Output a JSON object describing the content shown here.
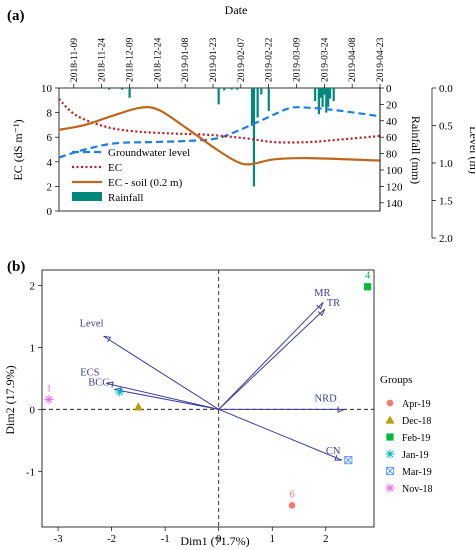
{
  "chart_data": [
    {
      "panel": "(a)",
      "type": "line",
      "title": "Date",
      "x_ticks": [
        "2018-11-09",
        "2018-11-24",
        "2018-12-09",
        "2018-12-24",
        "2019-01-08",
        "2019-01-23",
        "2019-02-07",
        "2019-02-22",
        "2019-03-09",
        "2019-03-24",
        "2019-04-08",
        "2019-04-23"
      ],
      "x_range": [
        "2018-11-01",
        "2019-04-23"
      ],
      "ylabel_left": "EC (dS m⁻¹)",
      "ylim_left": [
        0,
        10
      ],
      "yticks_left": [
        "0",
        "2",
        "4",
        "6",
        "8",
        "10"
      ],
      "ylabel_rain": "Rainfall (mm)",
      "rain_ticks": [
        "0",
        "20",
        "40",
        "60",
        "80",
        "100",
        "120",
        "140"
      ],
      "rain_range": [
        0,
        150
      ],
      "ylabel_level": "Level (m)",
      "level_ticks": [
        "0.0",
        "0.5",
        "1.0",
        "1.5",
        "2.0"
      ],
      "level_range": [
        0,
        2
      ],
      "legend": [
        "Groundwater level",
        "EC",
        "EC - soil (0.2 m)",
        "Rainfall"
      ],
      "series": [
        {
          "name": "Groundwater level",
          "style": "dashed",
          "color": "#1e7fe0",
          "axis": "level",
          "x": [
            "2018-11-01",
            "2018-11-15",
            "2018-12-01",
            "2018-12-20",
            "2019-01-10",
            "2019-01-25",
            "2019-02-05",
            "2019-02-20",
            "2019-03-05",
            "2019-03-15",
            "2019-03-30",
            "2019-04-23"
          ],
          "y": [
            1.13,
            1.0,
            0.9,
            0.88,
            0.86,
            0.82,
            0.7,
            0.5,
            0.33,
            0.32,
            0.36,
            0.46
          ]
        },
        {
          "name": "EC",
          "style": "dotted",
          "color": "#c0181e",
          "axis": "ec",
          "x": [
            "2018-11-01",
            "2018-11-10",
            "2018-11-25",
            "2018-12-10",
            "2019-01-01",
            "2019-01-20",
            "2019-02-10",
            "2019-02-25",
            "2019-03-15",
            "2019-04-01",
            "2019-04-23"
          ],
          "y": [
            9.1,
            7.8,
            6.9,
            6.5,
            6.3,
            6.2,
            5.9,
            5.6,
            5.6,
            5.8,
            6.1
          ]
        },
        {
          "name": "EC - soil (0.2 m)",
          "style": "solid",
          "color": "#c0661c",
          "axis": "ec",
          "x": [
            "2018-11-01",
            "2018-11-15",
            "2018-12-01",
            "2018-12-15",
            "2018-12-25",
            "2019-01-10",
            "2019-01-25",
            "2019-02-05",
            "2019-02-12",
            "2019-02-25",
            "2019-03-15",
            "2019-04-23"
          ],
          "y": [
            6.6,
            7.0,
            7.8,
            8.4,
            8.2,
            6.6,
            5.0,
            4.0,
            3.8,
            4.2,
            4.3,
            4.1
          ]
        },
        {
          "name": "Rainfall",
          "style": "bar",
          "color": "#00897b",
          "axis": "rain",
          "x": [
            "2018-11-28",
            "2018-12-05",
            "2018-12-09",
            "2019-01-26",
            "2019-01-29",
            "2019-02-02",
            "2019-02-05",
            "2019-02-13",
            "2019-02-14",
            "2019-02-16",
            "2019-02-18",
            "2019-02-22",
            "2019-03-19",
            "2019-03-21",
            "2019-03-22",
            "2019-03-23",
            "2019-03-24",
            "2019-03-25",
            "2019-03-26",
            "2019-03-27",
            "2019-03-29"
          ],
          "y": [
            2,
            2,
            12,
            20,
            3,
            2,
            2,
            46,
            120,
            36,
            8,
            28,
            16,
            32,
            12,
            23,
            8,
            30,
            23,
            13,
            16
          ]
        }
      ]
    },
    {
      "panel": "(b)",
      "type": "scatter",
      "xlabel": "Dim1 (71.7%)",
      "ylabel": "Dim2 (17.9%)",
      "xlim": [
        -3.3,
        2.9
      ],
      "ylim": [
        -1.9,
        2.25
      ],
      "xticks": [
        "-3",
        "-2",
        "-1",
        "0",
        "1",
        "2"
      ],
      "yticks": [
        "2",
        "1",
        "0",
        "-1"
      ],
      "legend_title": "Groups",
      "groups": [
        {
          "name": "Apr-19",
          "color": "#f07b72",
          "marker": "circle",
          "x": 1.37,
          "y": -1.55,
          "label": "6"
        },
        {
          "name": "Dec-18",
          "color": "#b79f00",
          "marker": "triangle",
          "x": -1.5,
          "y": 0.04,
          "label": ""
        },
        {
          "name": "Feb-19",
          "color": "#00ba38",
          "marker": "square",
          "x": 2.78,
          "y": 1.98,
          "label": "4"
        },
        {
          "name": "Jan-19",
          "color": "#00bfc4",
          "marker": "asterisk",
          "x": -1.85,
          "y": 0.28,
          "label": ""
        },
        {
          "name": "Mar-19",
          "color": "#619cff",
          "marker": "boxx",
          "x": 2.42,
          "y": -0.82,
          "label": ""
        },
        {
          "name": "Nov-18",
          "color": "#f564e3",
          "marker": "asterisk",
          "x": -3.17,
          "y": 0.16,
          "label": "1"
        }
      ],
      "vectors": [
        {
          "label": "MR",
          "x": 1.95,
          "y": 1.73
        },
        {
          "label": "TR",
          "x": 1.98,
          "y": 1.62
        },
        {
          "label": "Level",
          "x": -2.15,
          "y": 1.18
        },
        {
          "label": "ECS",
          "x": -2.1,
          "y": 0.42
        },
        {
          "label": "BCG",
          "x": -1.95,
          "y": 0.32
        },
        {
          "label": "NRD",
          "x": 2.35,
          "y": 0.0
        },
        {
          "label": "CN",
          "x": 2.3,
          "y": -0.82
        }
      ]
    }
  ]
}
